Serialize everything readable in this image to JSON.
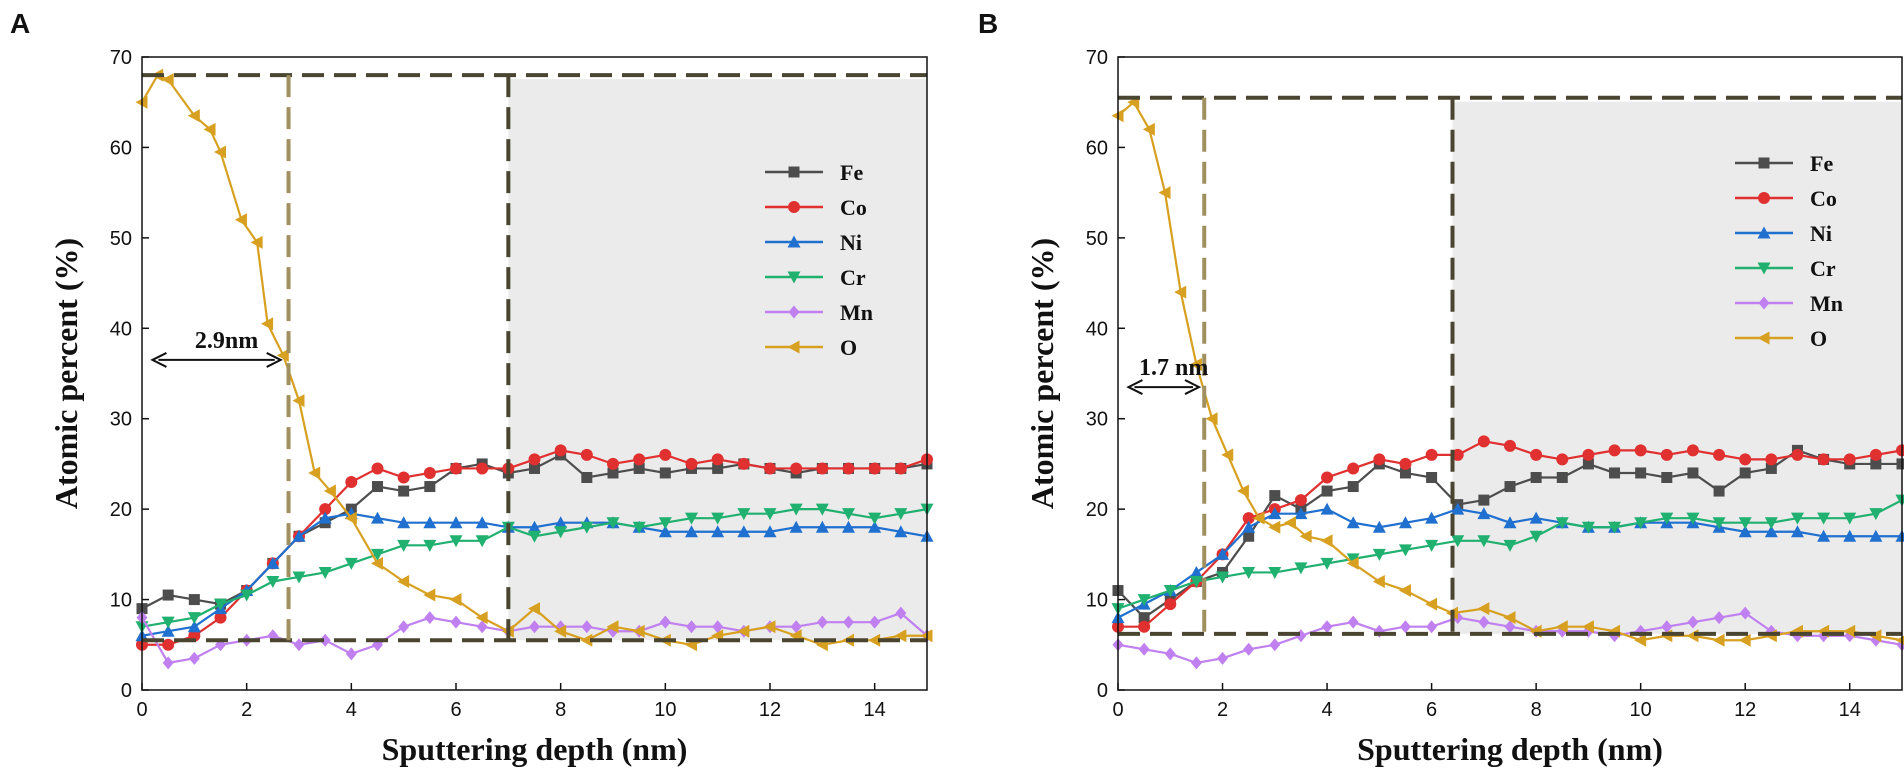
{
  "panels": [
    {
      "label": "A",
      "annotation": "2.9nm",
      "chart_data": {
        "type": "line",
        "xlabel": "Sputtering depth (nm)",
        "ylabel": "Atomic percent (%)",
        "xlim": [
          0,
          15
        ],
        "ylim": [
          0,
          70
        ],
        "xticks": [
          "0",
          "2",
          "4",
          "6",
          "8",
          "10",
          "12",
          "14"
        ],
        "yticks": [
          "0",
          "10",
          "20",
          "30",
          "40",
          "50",
          "60",
          "70"
        ],
        "shaded_region": [
          7.0,
          15.0
        ],
        "ref_lines": {
          "upper_y": 68,
          "lower_y": 5.5,
          "depth_x": 2.8,
          "boundary_x": 7.0
        },
        "annotation_arrow": {
          "from": 0.2,
          "to": 2.65,
          "y": 36.5
        },
        "series": [
          {
            "name": "Fe",
            "color": "#4d4d4d",
            "marker": "square",
            "x": [
              0,
              0.5,
              1,
              1.5,
              2,
              2.5,
              3,
              3.5,
              4,
              4.5,
              5,
              5.5,
              6,
              6.5,
              7,
              7.5,
              8,
              8.5,
              9,
              9.5,
              10,
              10.5,
              11,
              11.5,
              12,
              12.5,
              13,
              13.5,
              14,
              14.5,
              15
            ],
            "y": [
              9,
              10.5,
              10,
              9.5,
              11,
              14,
              17,
              18.5,
              20,
              22.5,
              22,
              22.5,
              24.5,
              25,
              24,
              24.5,
              26,
              23.5,
              24,
              24.5,
              24,
              24.5,
              24.5,
              25,
              24.5,
              24,
              24.5,
              24.5,
              24.5,
              24.5,
              25
            ]
          },
          {
            "name": "Co",
            "color": "#e03030",
            "marker": "circle",
            "x": [
              0,
              0.5,
              1,
              1.5,
              2,
              2.5,
              3,
              3.5,
              4,
              4.5,
              5,
              5.5,
              6,
              6.5,
              7,
              7.5,
              8,
              8.5,
              9,
              9.5,
              10,
              10.5,
              11,
              11.5,
              12,
              12.5,
              13,
              13.5,
              14,
              14.5,
              15
            ],
            "y": [
              5,
              5,
              6,
              8,
              11,
              14,
              17,
              20,
              23,
              24.5,
              23.5,
              24,
              24.5,
              24.5,
              24.5,
              25.5,
              26.5,
              26,
              25,
              25.5,
              26,
              25,
              25.5,
              25,
              24.5,
              24.5,
              24.5,
              24.5,
              24.5,
              24.5,
              25.5
            ]
          },
          {
            "name": "Ni",
            "color": "#2070d0",
            "marker": "triangle-up",
            "x": [
              0,
              0.5,
              1,
              1.5,
              2,
              2.5,
              3,
              3.5,
              4,
              4.5,
              5,
              5.5,
              6,
              6.5,
              7,
              7.5,
              8,
              8.5,
              9,
              9.5,
              10,
              10.5,
              11,
              11.5,
              12,
              12.5,
              13,
              13.5,
              14,
              14.5,
              15
            ],
            "y": [
              6,
              6.5,
              7,
              9,
              11,
              14,
              17,
              19,
              19.5,
              19,
              18.5,
              18.5,
              18.5,
              18.5,
              18,
              18,
              18.5,
              18.5,
              18.5,
              18,
              17.5,
              17.5,
              17.5,
              17.5,
              17.5,
              18,
              18,
              18,
              18,
              17.5,
              17
            ]
          },
          {
            "name": "Cr",
            "color": "#20b070",
            "marker": "triangle-down",
            "x": [
              0,
              0.5,
              1,
              1.5,
              2,
              2.5,
              3,
              3.5,
              4,
              4.5,
              5,
              5.5,
              6,
              6.5,
              7,
              7.5,
              8,
              8.5,
              9,
              9.5,
              10,
              10.5,
              11,
              11.5,
              12,
              12.5,
              13,
              13.5,
              14,
              14.5,
              15
            ],
            "y": [
              7,
              7.5,
              8,
              9.5,
              10.5,
              12,
              12.5,
              13,
              14,
              15,
              16,
              16,
              16.5,
              16.5,
              18,
              17,
              17.5,
              18,
              18.5,
              18,
              18.5,
              19,
              19,
              19.5,
              19.5,
              20,
              20,
              19.5,
              19,
              19.5,
              20
            ]
          },
          {
            "name": "Mn",
            "color": "#c080f0",
            "marker": "diamond",
            "x": [
              0,
              0.5,
              1,
              1.5,
              2,
              2.5,
              3,
              3.5,
              4,
              4.5,
              5,
              5.5,
              6,
              6.5,
              7,
              7.5,
              8,
              8.5,
              9,
              9.5,
              10,
              10.5,
              11,
              11.5,
              12,
              12.5,
              13,
              13.5,
              14,
              14.5,
              15
            ],
            "y": [
              8,
              3,
              3.5,
              5,
              5.5,
              6,
              5,
              5.5,
              4,
              5,
              7,
              8,
              7.5,
              7,
              6.5,
              7,
              7,
              7,
              6.5,
              6.5,
              7.5,
              7,
              7,
              6.5,
              7,
              7,
              7.5,
              7.5,
              7.5,
              8.5,
              6
            ]
          },
          {
            "name": "O",
            "color": "#d8a020",
            "marker": "triangle-left",
            "x": [
              0,
              0.3,
              0.5,
              1,
              1.3,
              1.5,
              1.9,
              2.2,
              2.4,
              2.7,
              3,
              3.3,
              3.6,
              4,
              4.5,
              5,
              5.5,
              6,
              6.5,
              7,
              7.5,
              8,
              8.5,
              9,
              9.5,
              10,
              10.5,
              11,
              11.5,
              12,
              12.5,
              13,
              13.5,
              14,
              14.5,
              15
            ],
            "y": [
              65,
              68,
              67.5,
              63.5,
              62,
              59.5,
              52,
              49.5,
              40.5,
              37,
              32,
              24,
              22,
              19,
              14,
              12,
              10.5,
              10,
              8,
              6.5,
              9,
              6.5,
              5.5,
              7,
              6.5,
              5.5,
              5,
              6,
              6.5,
              7,
              6,
              5,
              5.5,
              5.5,
              6,
              6
            ]
          }
        ]
      }
    },
    {
      "label": "B",
      "annotation": "1.7 nm",
      "chart_data": {
        "type": "line",
        "xlabel": "Sputtering depth (nm)",
        "ylabel": "Atomic percent (%)",
        "xlim": [
          0,
          15
        ],
        "ylim": [
          0,
          70
        ],
        "xticks": [
          "0",
          "2",
          "4",
          "6",
          "8",
          "10",
          "12",
          "14"
        ],
        "yticks": [
          "0",
          "10",
          "20",
          "30",
          "40",
          "50",
          "60",
          "70"
        ],
        "shaded_region": [
          6.4,
          15.0
        ],
        "ref_lines": {
          "upper_y": 65.5,
          "lower_y": 6.2,
          "depth_x": 1.65,
          "boundary_x": 6.4
        },
        "annotation_arrow": {
          "from": 0.2,
          "to": 1.55,
          "y": 33.5
        },
        "series": [
          {
            "name": "Fe",
            "color": "#4d4d4d",
            "marker": "square",
            "x": [
              0,
              0.5,
              1,
              1.5,
              2,
              2.5,
              3,
              3.5,
              4,
              4.5,
              5,
              5.5,
              6,
              6.5,
              7,
              7.5,
              8,
              8.5,
              9,
              9.5,
              10,
              10.5,
              11,
              11.5,
              12,
              12.5,
              13,
              13.5,
              14,
              14.5,
              15
            ],
            "y": [
              11,
              8,
              10,
              12,
              13,
              17,
              21.5,
              20,
              22,
              22.5,
              25,
              24,
              23.5,
              20.5,
              21,
              22.5,
              23.5,
              23.5,
              25,
              24,
              24,
              23.5,
              24,
              22,
              24,
              24.5,
              26.5,
              25.5,
              25,
              25,
              25
            ]
          },
          {
            "name": "Co",
            "color": "#e03030",
            "marker": "circle",
            "x": [
              0,
              0.5,
              1,
              1.5,
              2,
              2.5,
              3,
              3.5,
              4,
              4.5,
              5,
              5.5,
              6,
              6.5,
              7,
              7.5,
              8,
              8.5,
              9,
              9.5,
              10,
              10.5,
              11,
              11.5,
              12,
              12.5,
              13,
              13.5,
              14,
              14.5,
              15
            ],
            "y": [
              7,
              7,
              9.5,
              12,
              15,
              19,
              20,
              21,
              23.5,
              24.5,
              25.5,
              25,
              26,
              26,
              27.5,
              27,
              26,
              25.5,
              26,
              26.5,
              26.5,
              26,
              26.5,
              26,
              25.5,
              25.5,
              26,
              25.5,
              25.5,
              26,
              26.5
            ]
          },
          {
            "name": "Ni",
            "color": "#2070d0",
            "marker": "triangle-up",
            "x": [
              0,
              0.5,
              1,
              1.5,
              2,
              2.5,
              3,
              3.5,
              4,
              4.5,
              5,
              5.5,
              6,
              6.5,
              7,
              7.5,
              8,
              8.5,
              9,
              9.5,
              10,
              10.5,
              11,
              11.5,
              12,
              12.5,
              13,
              13.5,
              14,
              14.5,
              15
            ],
            "y": [
              8,
              9.5,
              11,
              13,
              15,
              18,
              19.5,
              19.5,
              20,
              18.5,
              18,
              18.5,
              19,
              20,
              19.5,
              18.5,
              19,
              18.5,
              18,
              18,
              18.5,
              18.5,
              18.5,
              18,
              17.5,
              17.5,
              17.5,
              17,
              17,
              17,
              17
            ]
          },
          {
            "name": "Cr",
            "color": "#20b070",
            "marker": "triangle-down",
            "x": [
              0,
              0.5,
              1,
              1.5,
              2,
              2.5,
              3,
              3.5,
              4,
              4.5,
              5,
              5.5,
              6,
              6.5,
              7,
              7.5,
              8,
              8.5,
              9,
              9.5,
              10,
              10.5,
              11,
              11.5,
              12,
              12.5,
              13,
              13.5,
              14,
              14.5,
              15
            ],
            "y": [
              9,
              10,
              11,
              12,
              12.5,
              13,
              13,
              13.5,
              14,
              14.5,
              15,
              15.5,
              16,
              16.5,
              16.5,
              16,
              17,
              18.5,
              18,
              18,
              18.5,
              19,
              19,
              18.5,
              18.5,
              18.5,
              19,
              19,
              19,
              19.5,
              21
            ]
          },
          {
            "name": "Mn",
            "color": "#c080f0",
            "marker": "diamond",
            "x": [
              0,
              0.5,
              1,
              1.5,
              2,
              2.5,
              3,
              3.5,
              4,
              4.5,
              5,
              5.5,
              6,
              6.5,
              7,
              7.5,
              8,
              8.5,
              9,
              9.5,
              10,
              10.5,
              11,
              11.5,
              12,
              12.5,
              13,
              13.5,
              14,
              14.5,
              15
            ],
            "y": [
              5,
              4.5,
              4,
              3,
              3.5,
              4.5,
              5,
              6,
              7,
              7.5,
              6.5,
              7,
              7,
              8,
              7.5,
              7,
              6.5,
              6.5,
              6.5,
              6,
              6.5,
              7,
              7.5,
              8,
              8.5,
              6.5,
              6,
              6,
              6,
              5.5,
              5
            ]
          },
          {
            "name": "O",
            "color": "#d8a020",
            "marker": "triangle-left",
            "x": [
              0,
              0.3,
              0.6,
              0.9,
              1.2,
              1.5,
              1.8,
              2.1,
              2.4,
              2.7,
              3,
              3.3,
              3.6,
              4,
              4.5,
              5,
              5.5,
              6,
              6.4,
              7,
              7.5,
              8,
              8.5,
              9,
              9.5,
              10,
              10.5,
              11,
              11.5,
              12,
              12.5,
              13,
              13.5,
              14,
              14.5,
              15
            ],
            "y": [
              63.5,
              65,
              62,
              55,
              44,
              36,
              30,
              26,
              22,
              19,
              18,
              18.5,
              17,
              16.5,
              14,
              12,
              11,
              9.5,
              8.5,
              9,
              8,
              6.5,
              7,
              7,
              6.5,
              5.5,
              6,
              6,
              5.5,
              5.5,
              6,
              6.5,
              6.5,
              6.5,
              6,
              5.5
            ]
          }
        ]
      }
    }
  ],
  "colors": {
    "ref_line": "#4a4530",
    "ref_line_light": "#a09060",
    "shade": "#ebebeb"
  }
}
